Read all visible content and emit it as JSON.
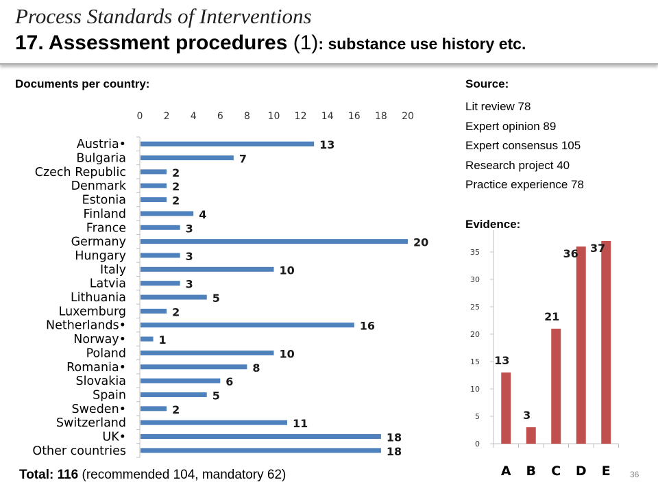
{
  "title": {
    "line1": "Process Standards of Interventions",
    "line2_a": "17. Assessment procedures",
    "line2_b": " (1)",
    "line2_c": ": substance use history etc."
  },
  "labels": {
    "documents": "Documents per country:",
    "source": "Source:",
    "evidence": "Evidence:"
  },
  "sources": [
    "Lit review 78",
    "Expert opinion 89",
    "Expert consensus 105",
    "Research project 40",
    "Practice experience 78"
  ],
  "total": {
    "label": "Total:",
    "value": "116",
    "detail": "(recommended 104, mandatory 62)"
  },
  "page_number": "36",
  "colors": {
    "countries_bar": "#4f81bd",
    "evidence_bar": "#c0504d"
  },
  "chart_data": [
    {
      "type": "bar",
      "orientation": "horizontal",
      "categories": [
        "Austria•",
        "Bulgaria",
        "Czech Republic",
        "Denmark",
        "Estonia",
        "Finland",
        "France",
        "Germany",
        "Hungary",
        "Italy",
        "Latvia",
        "Lithuania",
        "Luxemburg",
        "Netherlands•",
        "Norway•",
        "Poland",
        "Romania•",
        "Slovakia",
        "Spain",
        "Sweden•",
        "Switzerland",
        "UK•",
        "Other countries"
      ],
      "values": [
        13,
        7,
        2,
        2,
        2,
        4,
        3,
        20,
        3,
        10,
        3,
        5,
        2,
        16,
        1,
        10,
        8,
        6,
        5,
        2,
        11,
        18,
        18
      ],
      "xlim": [
        0,
        20
      ],
      "xticks": [
        0,
        2,
        4,
        6,
        8,
        10,
        12,
        14,
        16,
        18,
        20
      ],
      "xaxis_position": "top",
      "data_labels": true
    },
    {
      "type": "bar",
      "orientation": "vertical",
      "categories": [
        "A",
        "B",
        "C",
        "D",
        "E"
      ],
      "values": [
        13,
        3,
        21,
        36,
        37
      ],
      "ylim": [
        0,
        35
      ],
      "yticks": [
        0,
        5,
        10,
        15,
        20,
        25,
        30,
        35
      ],
      "data_labels": true
    }
  ]
}
